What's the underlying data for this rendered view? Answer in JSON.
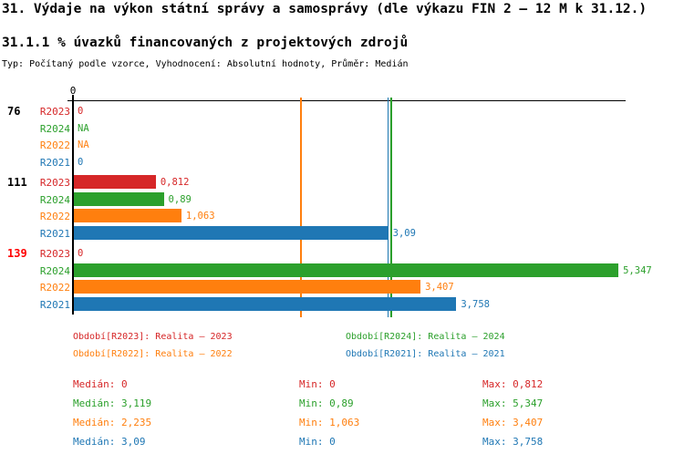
{
  "page": {
    "title": "31. Výdaje na výkon státní správy a samosprávy (dle výkazu FIN 2 – 12 M k 31.12.)",
    "subtitle": "31.1.1 % úvazků financovaných z projektových zdrojů",
    "type_line": "Typ: Počítaný podle vzorce, Vyhodnocení: Absolutní hodnoty, Průměr: Medián"
  },
  "chart_data": {
    "type": "bar",
    "orientation": "horizontal",
    "title": "31.1.1 % úvazků financovaných z projektových zdrojů",
    "x_axis": {
      "ticks": [
        "0"
      ],
      "min": 0,
      "max": 6,
      "grid": false
    },
    "series_order": [
      "R2023",
      "R2024",
      "R2022",
      "R2021"
    ],
    "series_colors": {
      "R2023": "#d62728",
      "R2024": "#2ca02c",
      "R2022": "#ff7f0e",
      "R2021": "#1f77b4"
    },
    "groups": [
      {
        "label": "76",
        "label_color": "#000000",
        "rows": [
          {
            "series": "R2023",
            "value": 0,
            "display": "0"
          },
          {
            "series": "R2024",
            "value": null,
            "display": "NA"
          },
          {
            "series": "R2022",
            "value": null,
            "display": "NA"
          },
          {
            "series": "R2021",
            "value": 0,
            "display": "0"
          }
        ]
      },
      {
        "label": "111",
        "label_color": "#000000",
        "rows": [
          {
            "series": "R2023",
            "value": 0.812,
            "display": "0,812"
          },
          {
            "series": "R2024",
            "value": 0.89,
            "display": "0,89"
          },
          {
            "series": "R2022",
            "value": 1.063,
            "display": "1,063"
          },
          {
            "series": "R2021",
            "value": 3.09,
            "display": "3,09"
          }
        ]
      },
      {
        "label": "139",
        "label_color": "#ff0000",
        "rows": [
          {
            "series": "R2023",
            "value": 0,
            "display": "0"
          },
          {
            "series": "R2024",
            "value": 5.347,
            "display": "5,347"
          },
          {
            "series": "R2022",
            "value": 3.407,
            "display": "3,407"
          },
          {
            "series": "R2021",
            "value": 3.758,
            "display": "3,758"
          }
        ]
      }
    ],
    "median_lines": [
      {
        "series": "R2022",
        "value": 2.235,
        "color": "#ff7f0e"
      },
      {
        "series": "R2021",
        "value": 3.09,
        "color": "#1f77b4"
      },
      {
        "series": "R2024",
        "value": 3.119,
        "color": "#2ca02c"
      }
    ],
    "legend": [
      {
        "label": "Období[R2023]: Realita – 2023",
        "color": "#d62728",
        "col": 0,
        "row": 0
      },
      {
        "label": "Období[R2024]: Realita – 2024",
        "color": "#2ca02c",
        "col": 1,
        "row": 0
      },
      {
        "label": "Období[R2022]: Realita – 2022",
        "color": "#ff7f0e",
        "col": 0,
        "row": 1
      },
      {
        "label": "Období[R2021]: Realita – 2021",
        "color": "#1f77b4",
        "col": 1,
        "row": 1
      }
    ],
    "stats": {
      "labels": {
        "median": "Medián",
        "min": "Min",
        "max": "Max"
      },
      "rows": [
        {
          "color": "#d62728",
          "median": "0",
          "min": "0",
          "max": "0,812"
        },
        {
          "color": "#2ca02c",
          "median": "3,119",
          "min": "0,89",
          "max": "5,347"
        },
        {
          "color": "#ff7f0e",
          "median": "2,235",
          "min": "1,063",
          "max": "3,407"
        },
        {
          "color": "#1f77b4",
          "median": "3,09",
          "min": "0",
          "max": "3,758"
        }
      ]
    }
  }
}
